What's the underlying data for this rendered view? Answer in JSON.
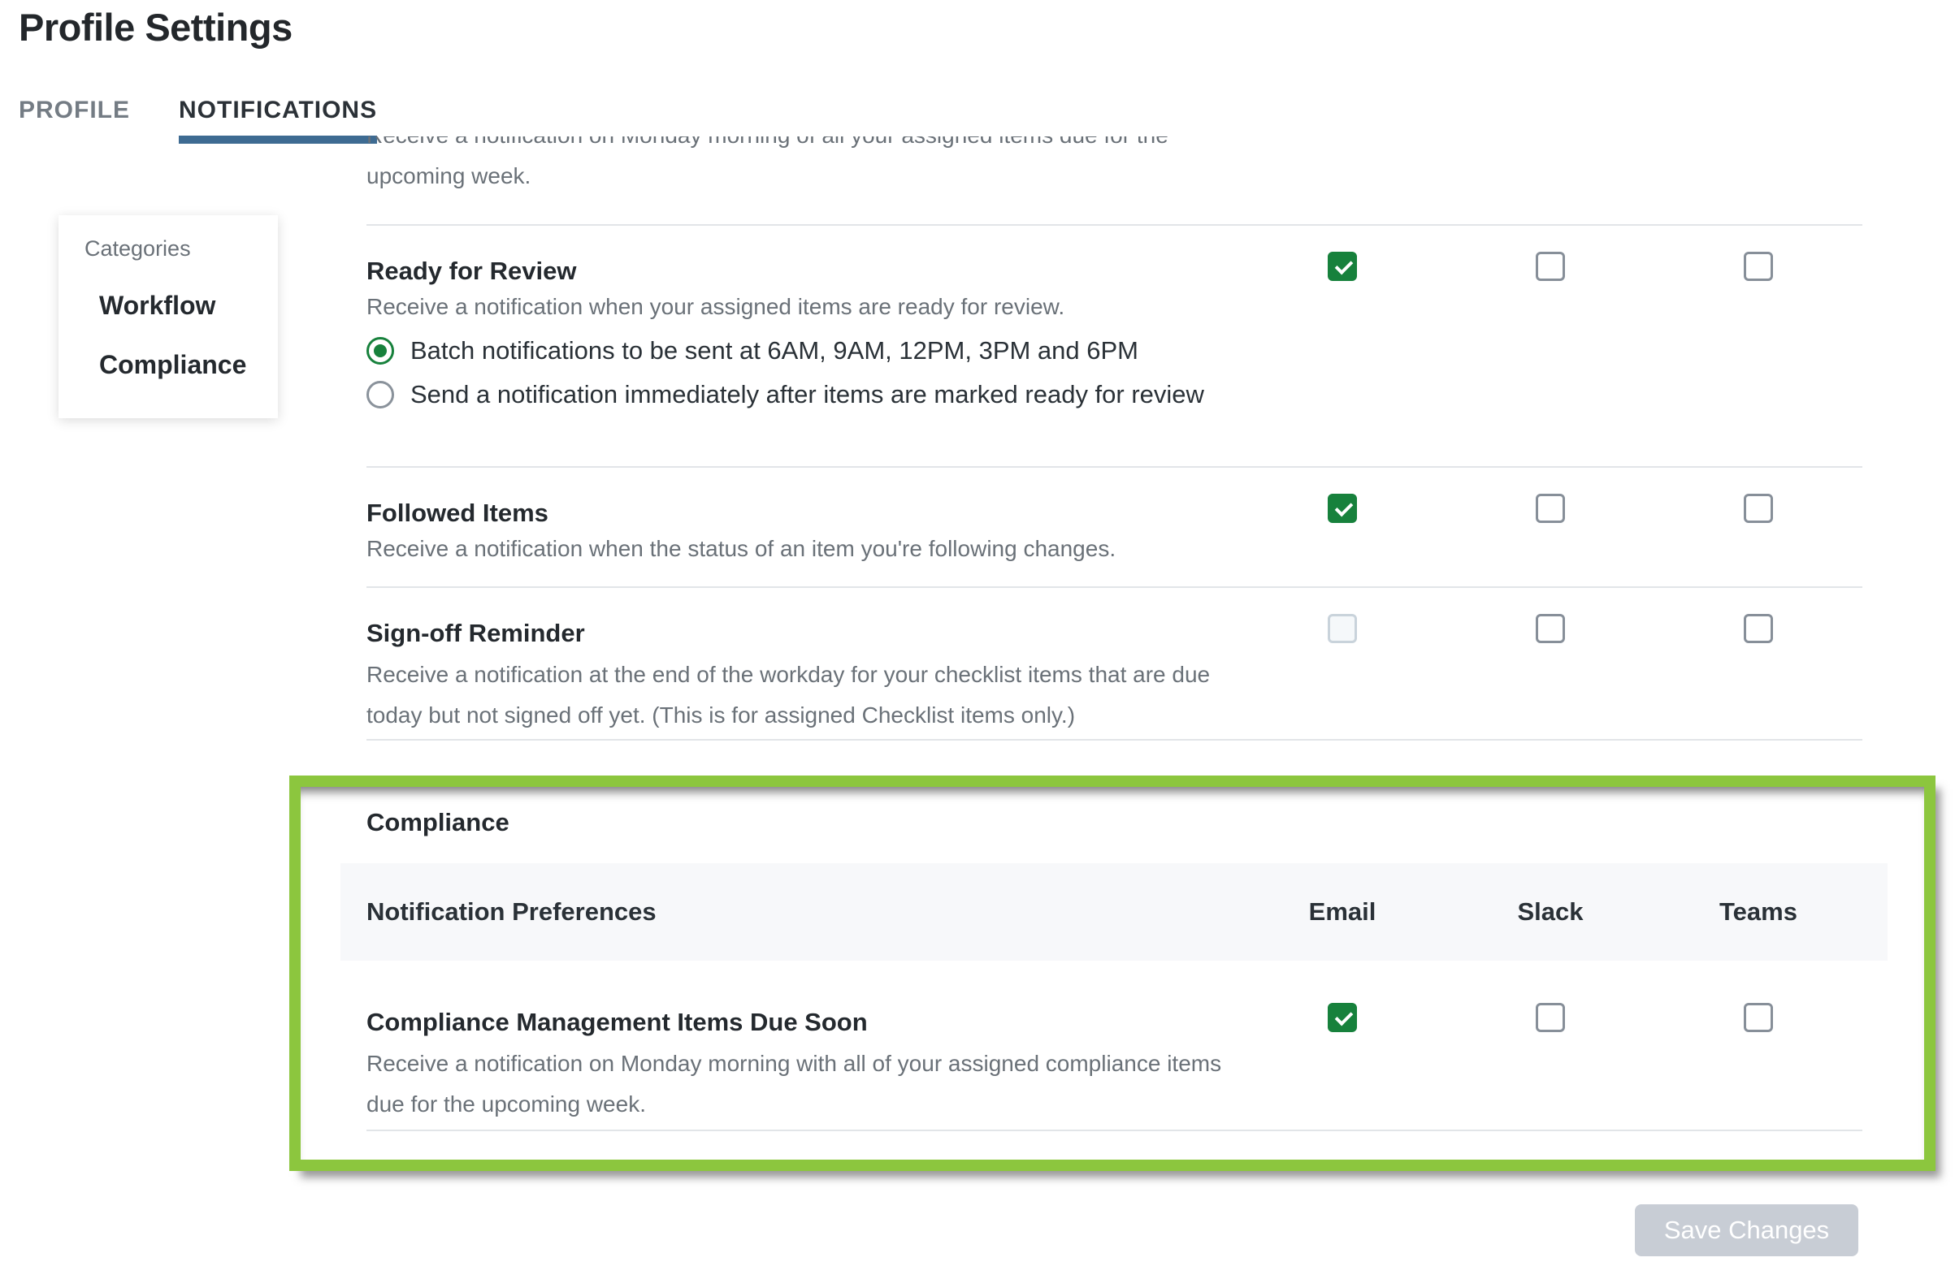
{
  "page": {
    "title": "Profile Settings"
  },
  "tabs": [
    {
      "label": "PROFILE",
      "active": false
    },
    {
      "label": "NOTIFICATIONS",
      "active": true
    }
  ],
  "sidebar": {
    "title": "Categories",
    "items": [
      {
        "label": "Workflow"
      },
      {
        "label": "Compliance"
      }
    ]
  },
  "workflow": {
    "intro": "Receive a notification on Monday morning of all your assigned items due for the upcoming week.",
    "rows": [
      {
        "title": "Ready for Review",
        "description": "Receive a notification when your assigned items are ready for review.",
        "options": [
          {
            "label": "Batch notifications to be sent at 6AM, 9AM, 12PM, 3PM and 6PM",
            "state": "selected"
          },
          {
            "label": "Send a notification immediately after items are marked ready for review",
            "state": "unselected"
          }
        ],
        "checkboxes": [
          "checked",
          "unchecked",
          "unchecked"
        ]
      },
      {
        "title": "Followed Items",
        "description": "Receive a notification when the status of an item you're following changes.",
        "checkboxes": [
          "checked",
          "unchecked",
          "unchecked"
        ]
      },
      {
        "title": "Sign-off Reminder",
        "description": "Receive a notification at the end of the workday for your checklist items that are due today but not signed off yet. (This is for assigned Checklist items only.)",
        "checkboxes": [
          "disabled",
          "unchecked",
          "unchecked"
        ]
      }
    ]
  },
  "compliance": {
    "title": "Compliance",
    "table_header": "Notification Preferences",
    "columns": [
      "Email",
      "Slack",
      "Teams"
    ],
    "rows": [
      {
        "title": "Compliance Management Items Due Soon",
        "description": "Receive a notification on Monday morning with all of your assigned compliance items due for the upcoming week.",
        "checkboxes": [
          "checked",
          "unchecked",
          "unchecked"
        ]
      }
    ]
  },
  "footer": {
    "save_label": "Save Changes"
  },
  "colors": {
    "checkbox_checked_green": "#17813C",
    "radio_selected_green": "#17813C",
    "highlight_border_green": "#8CC63E",
    "tab_underline_blue": "#3E6B92",
    "disabled_button_gray": "#C8CDD5",
    "header_band_gray": "#F7F8FA"
  }
}
